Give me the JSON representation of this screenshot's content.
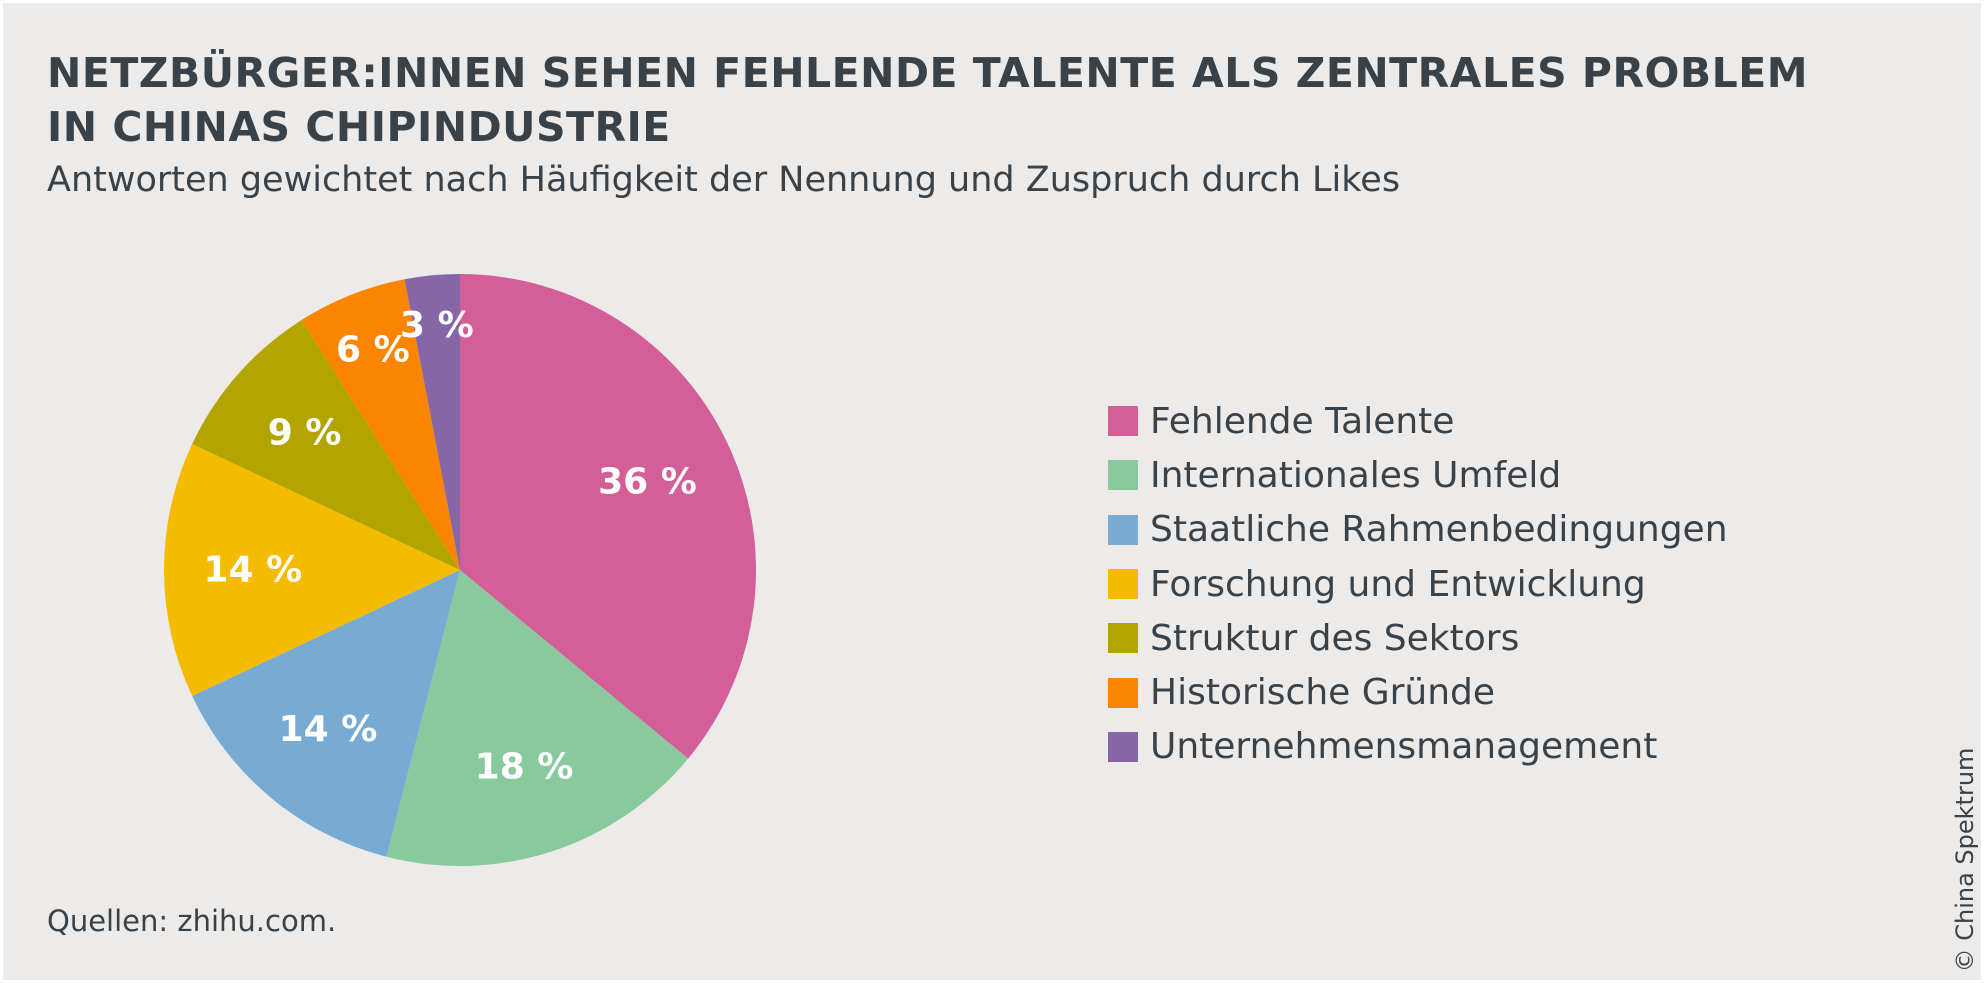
{
  "chart_data": {
    "type": "pie",
    "title": "NETZBÜRGER:INNEN SEHEN FEHLENDE TALENTE ALS ZENTRALES PROBLEM IN CHINAS CHIPINDUSTRIE",
    "title_lines": [
      "NETZBÜRGER:INNEN SEHEN FEHLENDE TALENTE ALS ZENTRALES PROBLEM",
      "IN CHINAS CHIPINDUSTRIE"
    ],
    "subtitle": "Antworten gewichtet nach Häufigkeit der Nennung und Zuspruch durch Likes",
    "legend_position": "right",
    "slices": [
      {
        "label": "Fehlende Talente",
        "value": 36,
        "display": "36 %",
        "color": "#d45e98"
      },
      {
        "label": "Internationales Umfeld",
        "value": 18,
        "display": "18 %",
        "color": "#88c99d"
      },
      {
        "label": "Staatliche Rahmenbedingungen",
        "value": 14,
        "display": "14 %",
        "color": "#77abd4"
      },
      {
        "label": "Forschung und Entwicklung",
        "value": 14,
        "display": "14 %",
        "color": "#f5bb00"
      },
      {
        "label": "Struktur des Sektors",
        "value": 9,
        "display": "9 %",
        "color": "#b2a500"
      },
      {
        "label": "Historische Gründe",
        "value": 6,
        "display": "6 %",
        "color": "#fb8500"
      },
      {
        "label": "Unternehmensmanagement",
        "value": 3,
        "display": "3 %",
        "color": "#8766a8"
      }
    ]
  },
  "footer": {
    "source": "Quellen: zhihu.com.",
    "copyright": "© China Spektrum"
  }
}
